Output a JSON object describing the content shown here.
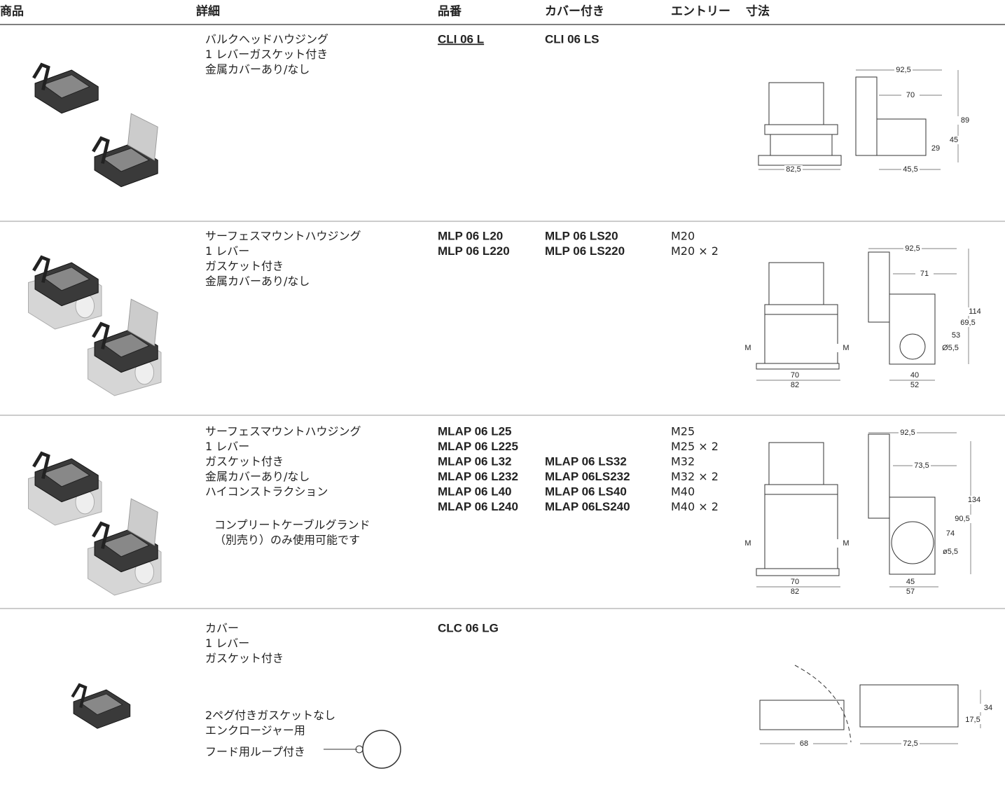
{
  "header": [
    "商品",
    "詳細",
    "品番",
    "カバー付き",
    "エントリー",
    "寸法"
  ],
  "rows": [
    {
      "details": [
        [
          "バルクヘッドハウジング",
          "1 レバーガスケット付き",
          "金属カバーあり/なし"
        ]
      ],
      "part_numbers": [
        "CLI 06 L"
      ],
      "with_cover": [
        "CLI 06 LS"
      ],
      "dimensions": [
        "92,5",
        "70",
        "89",
        "45",
        "29",
        "82,5",
        "45,5"
      ]
    },
    {
      "details": [
        [
          "サーフェスマウントハウジング",
          "1 レバー",
          "ガスケット付き",
          "金属カバーあり/なし"
        ]
      ],
      "part_numbers": [
        "MLP 06 L20",
        "MLP 06 L220"
      ],
      "with_cover": [
        "MLP 06 LS20",
        "MLP 06 LS220"
      ],
      "entries": [
        "M20",
        "M20 × 2"
      ],
      "dimensions": [
        "92,5",
        "71",
        "114",
        "69,5",
        "53",
        "Ø5,5",
        "M",
        "M",
        "70",
        "82",
        "40",
        "52"
      ]
    },
    {
      "details": [
        [
          "サーフェスマウントハウジング",
          "1 レバー",
          "ガスケット付き",
          "金属カバーあり/なし",
          "ハイコンストラクション"
        ]
      ],
      "note": [
        "コンプリートケーブルグランド",
        "（別売り）のみ使用可能です"
      ],
      "part_numbers": [
        "MLAP 06 L25",
        "MLAP 06 L225",
        "MLAP 06 L32",
        "MLAP 06 L232",
        "MLAP 06 L40",
        "MLAP 06 L240"
      ],
      "with_cover": [
        null,
        null,
        "MLAP 06 LS32",
        "MLAP 06LS232",
        "MLAP 06 LS40",
        "MLAP 06LS240"
      ],
      "entries": [
        "M25",
        "M25 × 2",
        "M32",
        "M32 × 2",
        "M40",
        "M40 × 2"
      ],
      "dimensions": [
        "92,5",
        "73,5",
        "134",
        "90,5",
        "74",
        "ø5,5",
        "M",
        "M",
        "70",
        "82",
        "45",
        "57"
      ]
    },
    {
      "details": [
        [
          "カバー",
          "1 レバー",
          "ガスケット付き"
        ],
        [
          "2ペグ付きガスケットなし",
          "エンクロージャー用"
        ],
        [
          "フード用ループ付き"
        ]
      ],
      "part_numbers": [
        "CLC 06 LG"
      ],
      "dimensions": [
        "34",
        "17,5",
        "68",
        "72,5"
      ]
    }
  ]
}
